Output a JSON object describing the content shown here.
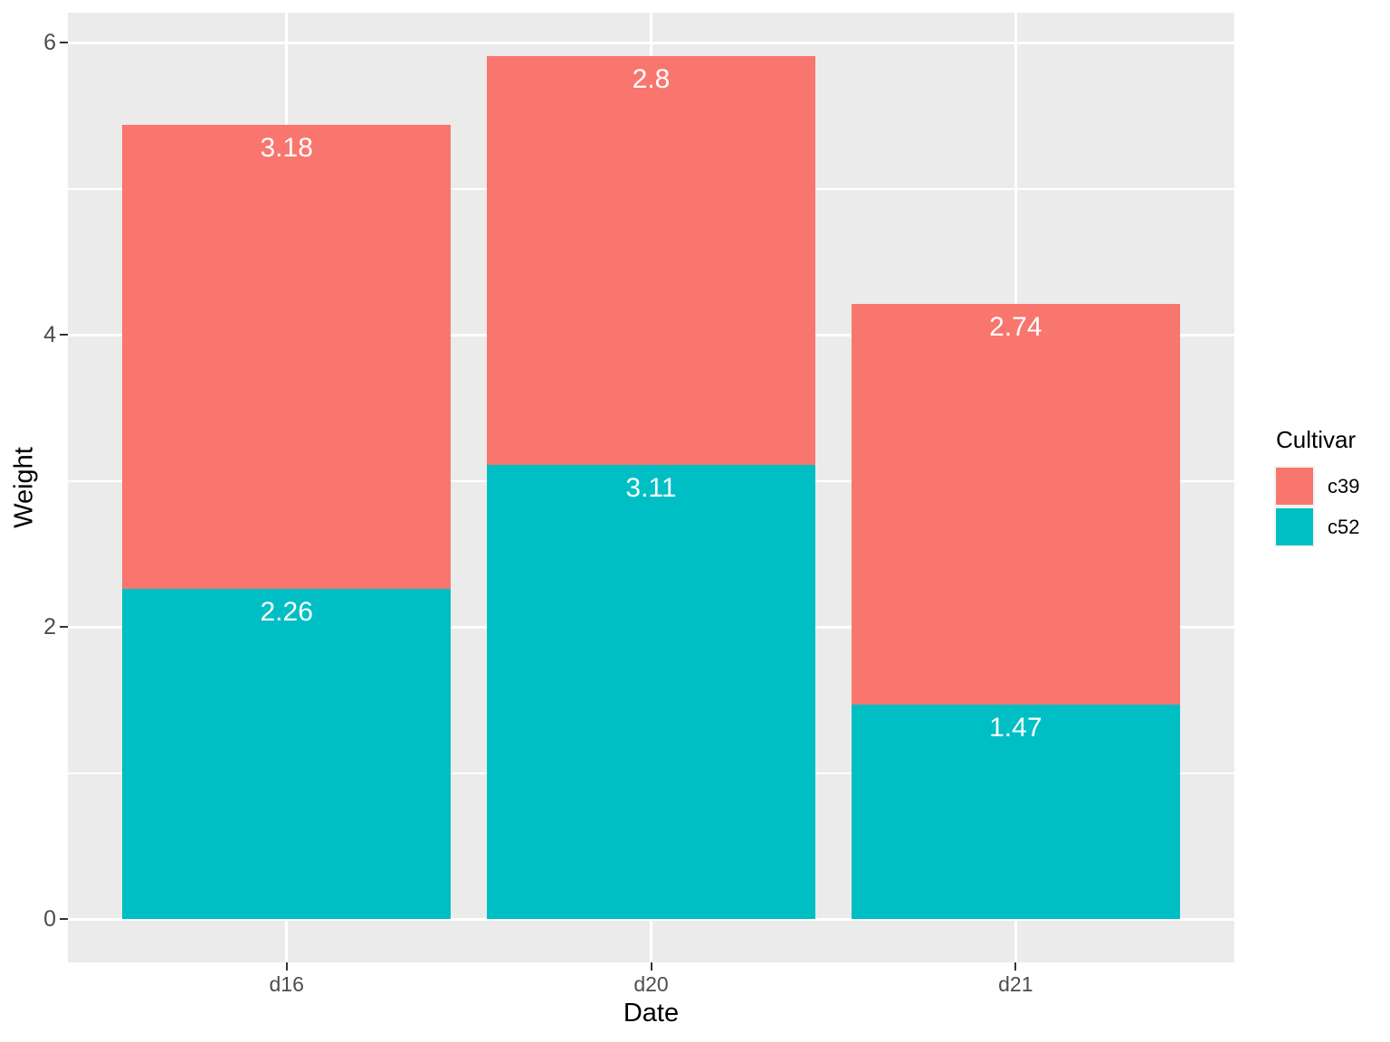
{
  "chart_data": {
    "type": "bar",
    "stacked": true,
    "title": "",
    "xlabel": "Date",
    "ylabel": "Weight",
    "categories": [
      "d16",
      "d20",
      "d21"
    ],
    "series": [
      {
        "name": "c39",
        "color": "#F8766D",
        "values": [
          3.18,
          2.8,
          2.74
        ],
        "value_labels": [
          "3.18",
          "2.8",
          "2.74"
        ]
      },
      {
        "name": "c52",
        "color": "#00BFC4",
        "values": [
          2.26,
          3.11,
          1.47
        ],
        "value_labels": [
          "2.26",
          "3.11",
          "1.47"
        ]
      }
    ],
    "stack_order_bottom_to_top": [
      "c52",
      "c39"
    ],
    "y_ticks": [
      0,
      2,
      4,
      6
    ],
    "y_tick_labels": [
      "0",
      "2",
      "4",
      "6"
    ],
    "y_minor_ticks": [
      1,
      3,
      5
    ],
    "ylim": [
      -0.296,
      6.206
    ],
    "bar_width_fraction": 0.9,
    "grid": true,
    "legend_position": "right",
    "value_label_color": "#FFFFFF"
  },
  "legend": {
    "title": "Cultivar",
    "items": [
      {
        "label": "c39",
        "color": "#F8766D"
      },
      {
        "label": "c52",
        "color": "#00BFC4"
      }
    ]
  },
  "style": {
    "figure_background": "#FFFFFF",
    "panel_background": "#EBEBEB",
    "gridline_color": "#FFFFFF",
    "tick_mark_color": "#333333",
    "tick_label_color": "#4D4D4D",
    "axis_title_color": "#000000",
    "legend_key_background": "#F2F2F2"
  }
}
